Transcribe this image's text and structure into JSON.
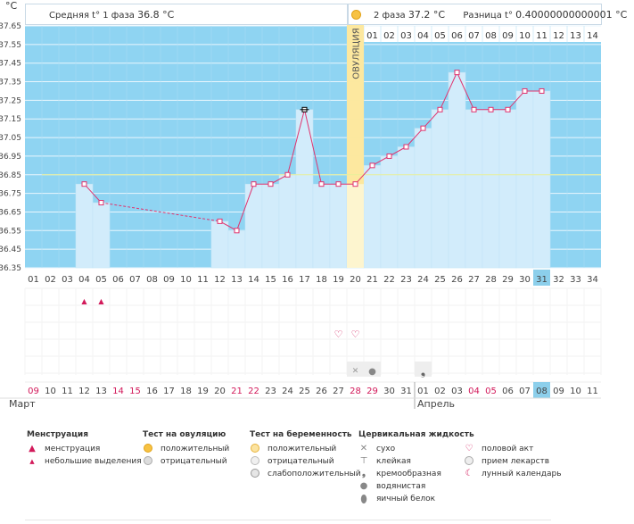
{
  "header": {
    "unit": "°C",
    "phase1_label": "Средняя t° 1 фаза",
    "phase1_value": "36.8 °C",
    "phase2_label": "2 фаза",
    "phase2_value": "37.2 °C",
    "diff_label": "Разница t°",
    "diff_value": "0.40000000000001 °C"
  },
  "colors": {
    "phase1_bg": "#8fd4f2",
    "phase2_bg": "#8fd4f2",
    "bar_fill": "#d2ecfb",
    "ovulation": "#fde79a",
    "line": "#e0336e",
    "coverline": "#e8ef9a",
    "grid": "#e9f6fd",
    "accent_red": "#d2195a",
    "highlight": "#8ccfeb"
  },
  "chart_data": {
    "type": "line",
    "title": "",
    "ylabel": "°C",
    "ylim": [
      36.35,
      37.65
    ],
    "y_ticks": [
      "37.65",
      "37.55",
      "37.45",
      "37.35",
      "37.25",
      "37.15",
      "37.05",
      "36.95",
      "36.85",
      "36.75",
      "36.65",
      "36.55",
      "36.45",
      "36.35"
    ],
    "cycle_days": [
      "01",
      "02",
      "03",
      "04",
      "05",
      "06",
      "07",
      "08",
      "09",
      "10",
      "11",
      "12",
      "13",
      "14",
      "15",
      "16",
      "17",
      "18",
      "19",
      "20",
      "21",
      "22",
      "23",
      "24",
      "25",
      "26",
      "27",
      "28",
      "29",
      "30",
      "31",
      "32",
      "33",
      "34"
    ],
    "current_day": "31",
    "phase2_days": [
      "01",
      "02",
      "03",
      "04",
      "05",
      "06",
      "07",
      "08",
      "09",
      "10",
      "11",
      "12",
      "13",
      "14"
    ],
    "ovulation_day": "20",
    "ovulation_label": "ОВУЛЯЦИЯ",
    "coverline": 36.85,
    "temperatures": [
      null,
      null,
      null,
      36.8,
      36.7,
      null,
      null,
      null,
      null,
      null,
      null,
      36.6,
      36.55,
      36.8,
      36.8,
      36.85,
      37.2,
      36.8,
      36.8,
      36.8,
      36.9,
      36.95,
      37.0,
      37.1,
      37.2,
      37.4,
      37.2,
      37.2,
      37.2,
      37.3,
      37.3,
      null,
      null,
      null
    ],
    "dashed_segment": [
      5,
      11
    ],
    "date_labels": [
      "09",
      "10",
      "11",
      "12",
      "13",
      "14",
      "15",
      "16",
      "17",
      "18",
      "19",
      "20",
      "21",
      "22",
      "23",
      "24",
      "25",
      "26",
      "27",
      "28",
      "29",
      "30",
      "31",
      "01",
      "02",
      "03",
      "04",
      "05",
      "06",
      "07",
      "08",
      "09",
      "10",
      "11"
    ],
    "weekend_indices": [
      0,
      5,
      6,
      12,
      13,
      19,
      20,
      26,
      27
    ],
    "months": [
      "Март",
      "Апрель"
    ],
    "month_split_index": 23,
    "markers": {
      "menstruation_days": [
        4,
        5
      ],
      "intercourse_days": [
        19,
        20
      ],
      "dry_days": [
        20
      ],
      "watery_days": [
        21
      ],
      "creamy_days": [
        24
      ]
    }
  },
  "legend": {
    "menstruation": {
      "title": "Менструация",
      "items": [
        "менструация",
        "небольшие выделения"
      ]
    },
    "ovulation_test": {
      "title": "Тест на овуляцию",
      "items": [
        "положительный",
        "отрицательный"
      ]
    },
    "pregnancy_test": {
      "title": "Тест на беременность",
      "items": [
        "положительный",
        "отрицательный",
        "слабоположительный"
      ]
    },
    "cervical": {
      "title": "Цервикальная жидкость",
      "items": [
        "сухо",
        "клейкая",
        "кремообразная",
        "водянистая",
        "яичный белок"
      ]
    },
    "other": {
      "items": [
        "половой акт",
        "прием лекарств",
        "лунный календарь"
      ]
    }
  }
}
